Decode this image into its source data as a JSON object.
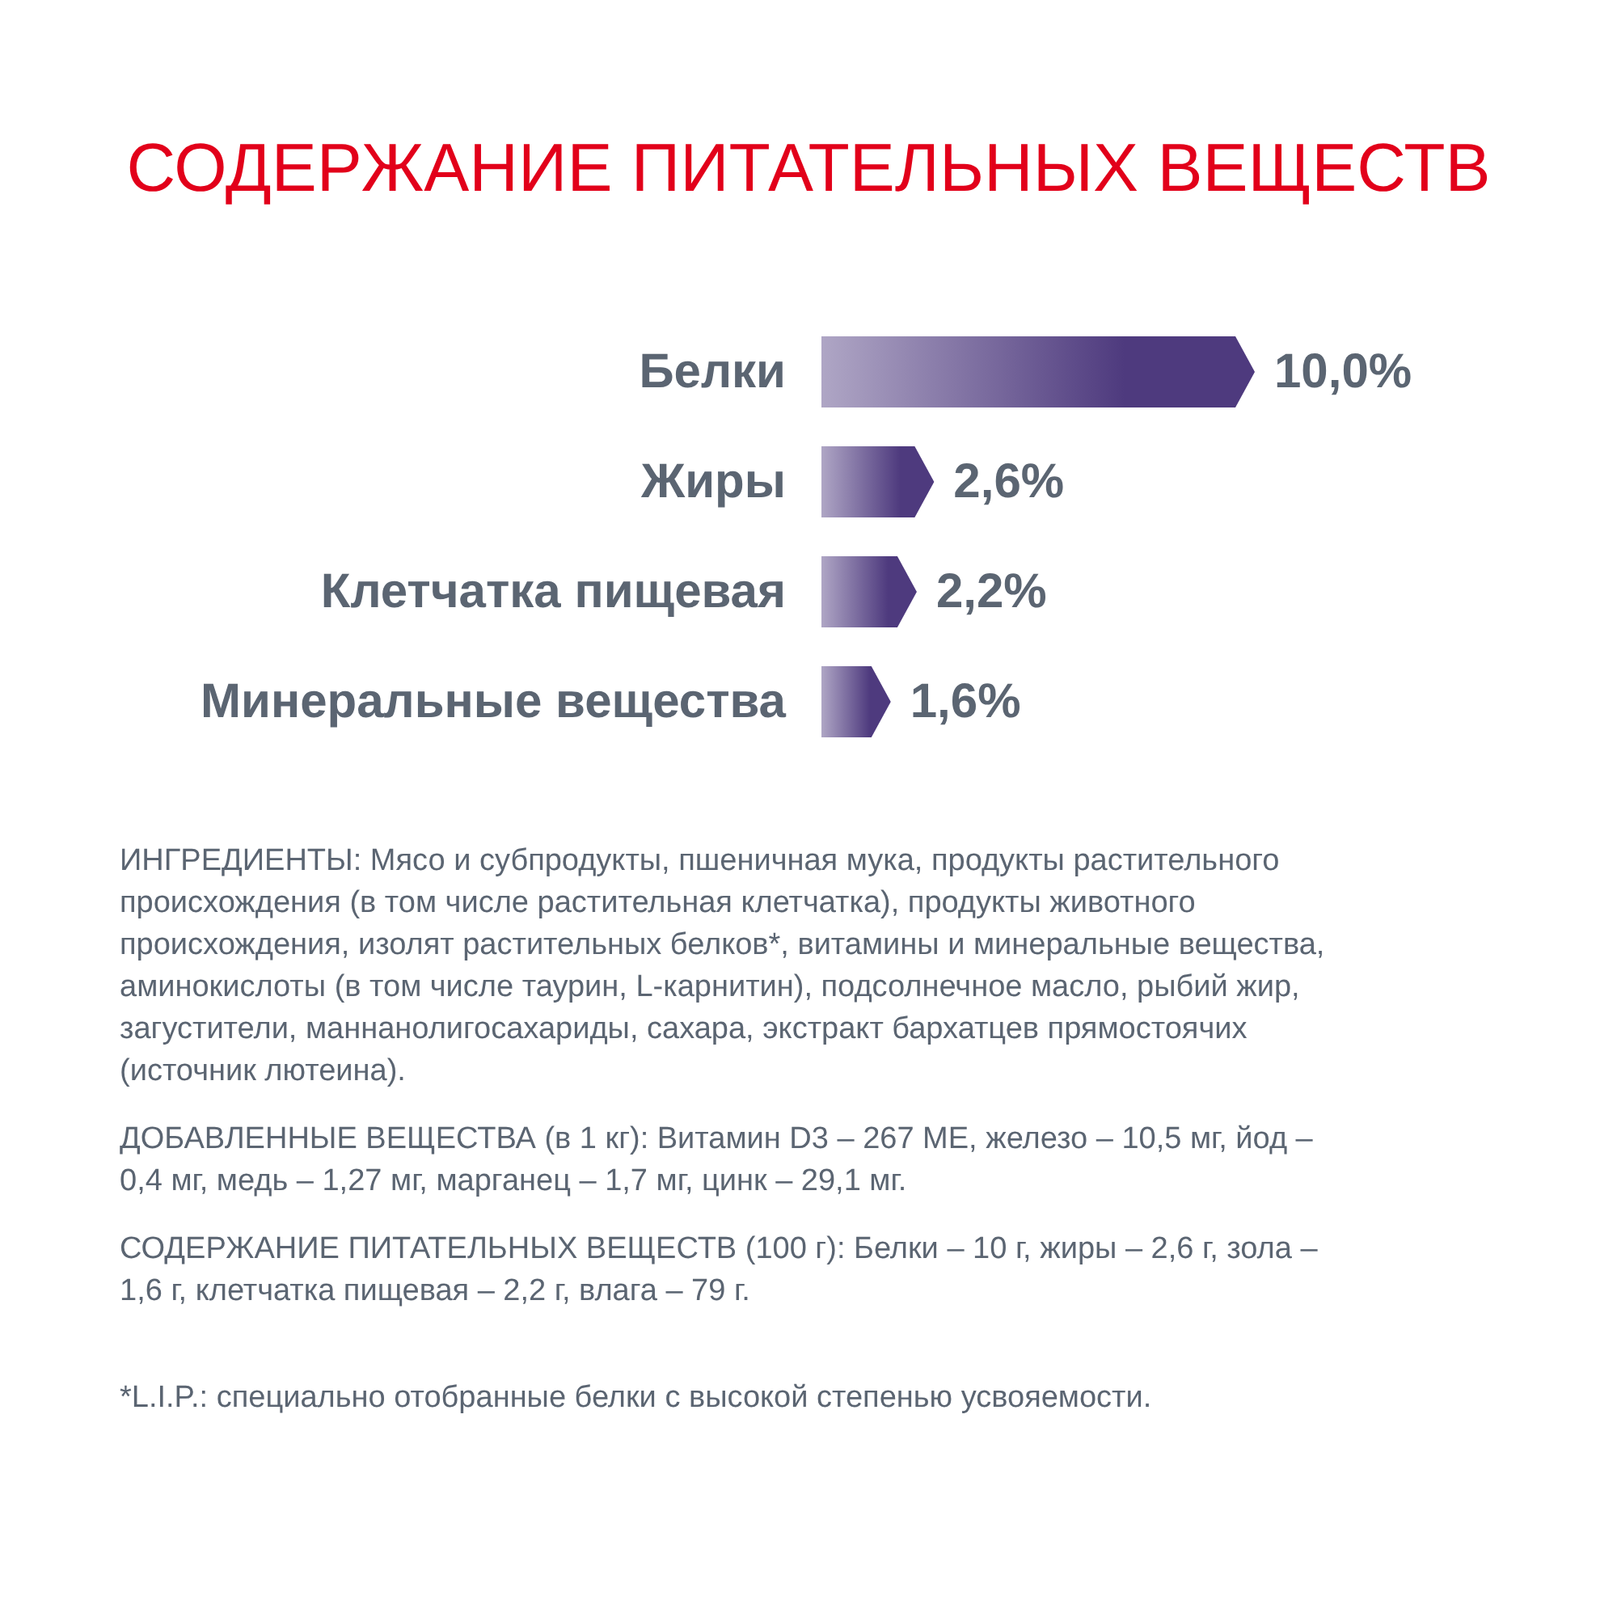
{
  "chart_data": {
    "type": "bar",
    "orientation": "horizontal",
    "title": "СОДЕРЖАНИЕ ПИТАТЕЛЬНЫХ ВЕЩЕСТВ",
    "categories": [
      "Белки",
      "Жиры",
      "Клетчатка пищевая",
      "Минеральные вещества"
    ],
    "values": [
      10.0,
      2.6,
      2.2,
      1.6
    ],
    "value_labels": [
      "10,0%",
      "2,6%",
      "2,2%",
      "1,6%"
    ],
    "color": "#4e3a7e",
    "xlim": [
      0,
      10
    ],
    "tick_labels": "y",
    "annotations": [
      "ИНГРЕДИЕНТЫ: Мясо и субпродукты, пшеничная мука, продукты растительного происхождения (в том числе растительная клетчатка), продукты животного происхождения, изолят растительных белков*, витамины и минеральные вещества, аминокислоты (в том числе таурин, L-карнитин), подсолнечное масло, рыбий жир, загустители, маннанолигосахариды, сахара, экстракт бархатцев прямостоячих (источник лютеина).",
      "ДОБАВЛЕННЫЕ ВЕЩЕСТВА (в 1 кг): Витамин D3 – 267 МЕ, железо – 10,5 мг, йод – 0,4 мг, медь – 1,27 мг, марганец – 1,7 мг, цинк – 29,1 мг.",
      "СОДЕРЖАНИЕ ПИТАТЕЛЬНЫХ ВЕЩЕСТВ (100 г): Белки – 10 г, жиры – 2,6 г, зола – 1,6 г, клетчатка пищевая – 2,2 г, влага – 79 г.",
      "*L.I.P.: специально отобранные белки с высокой степенью усвояемости."
    ]
  }
}
